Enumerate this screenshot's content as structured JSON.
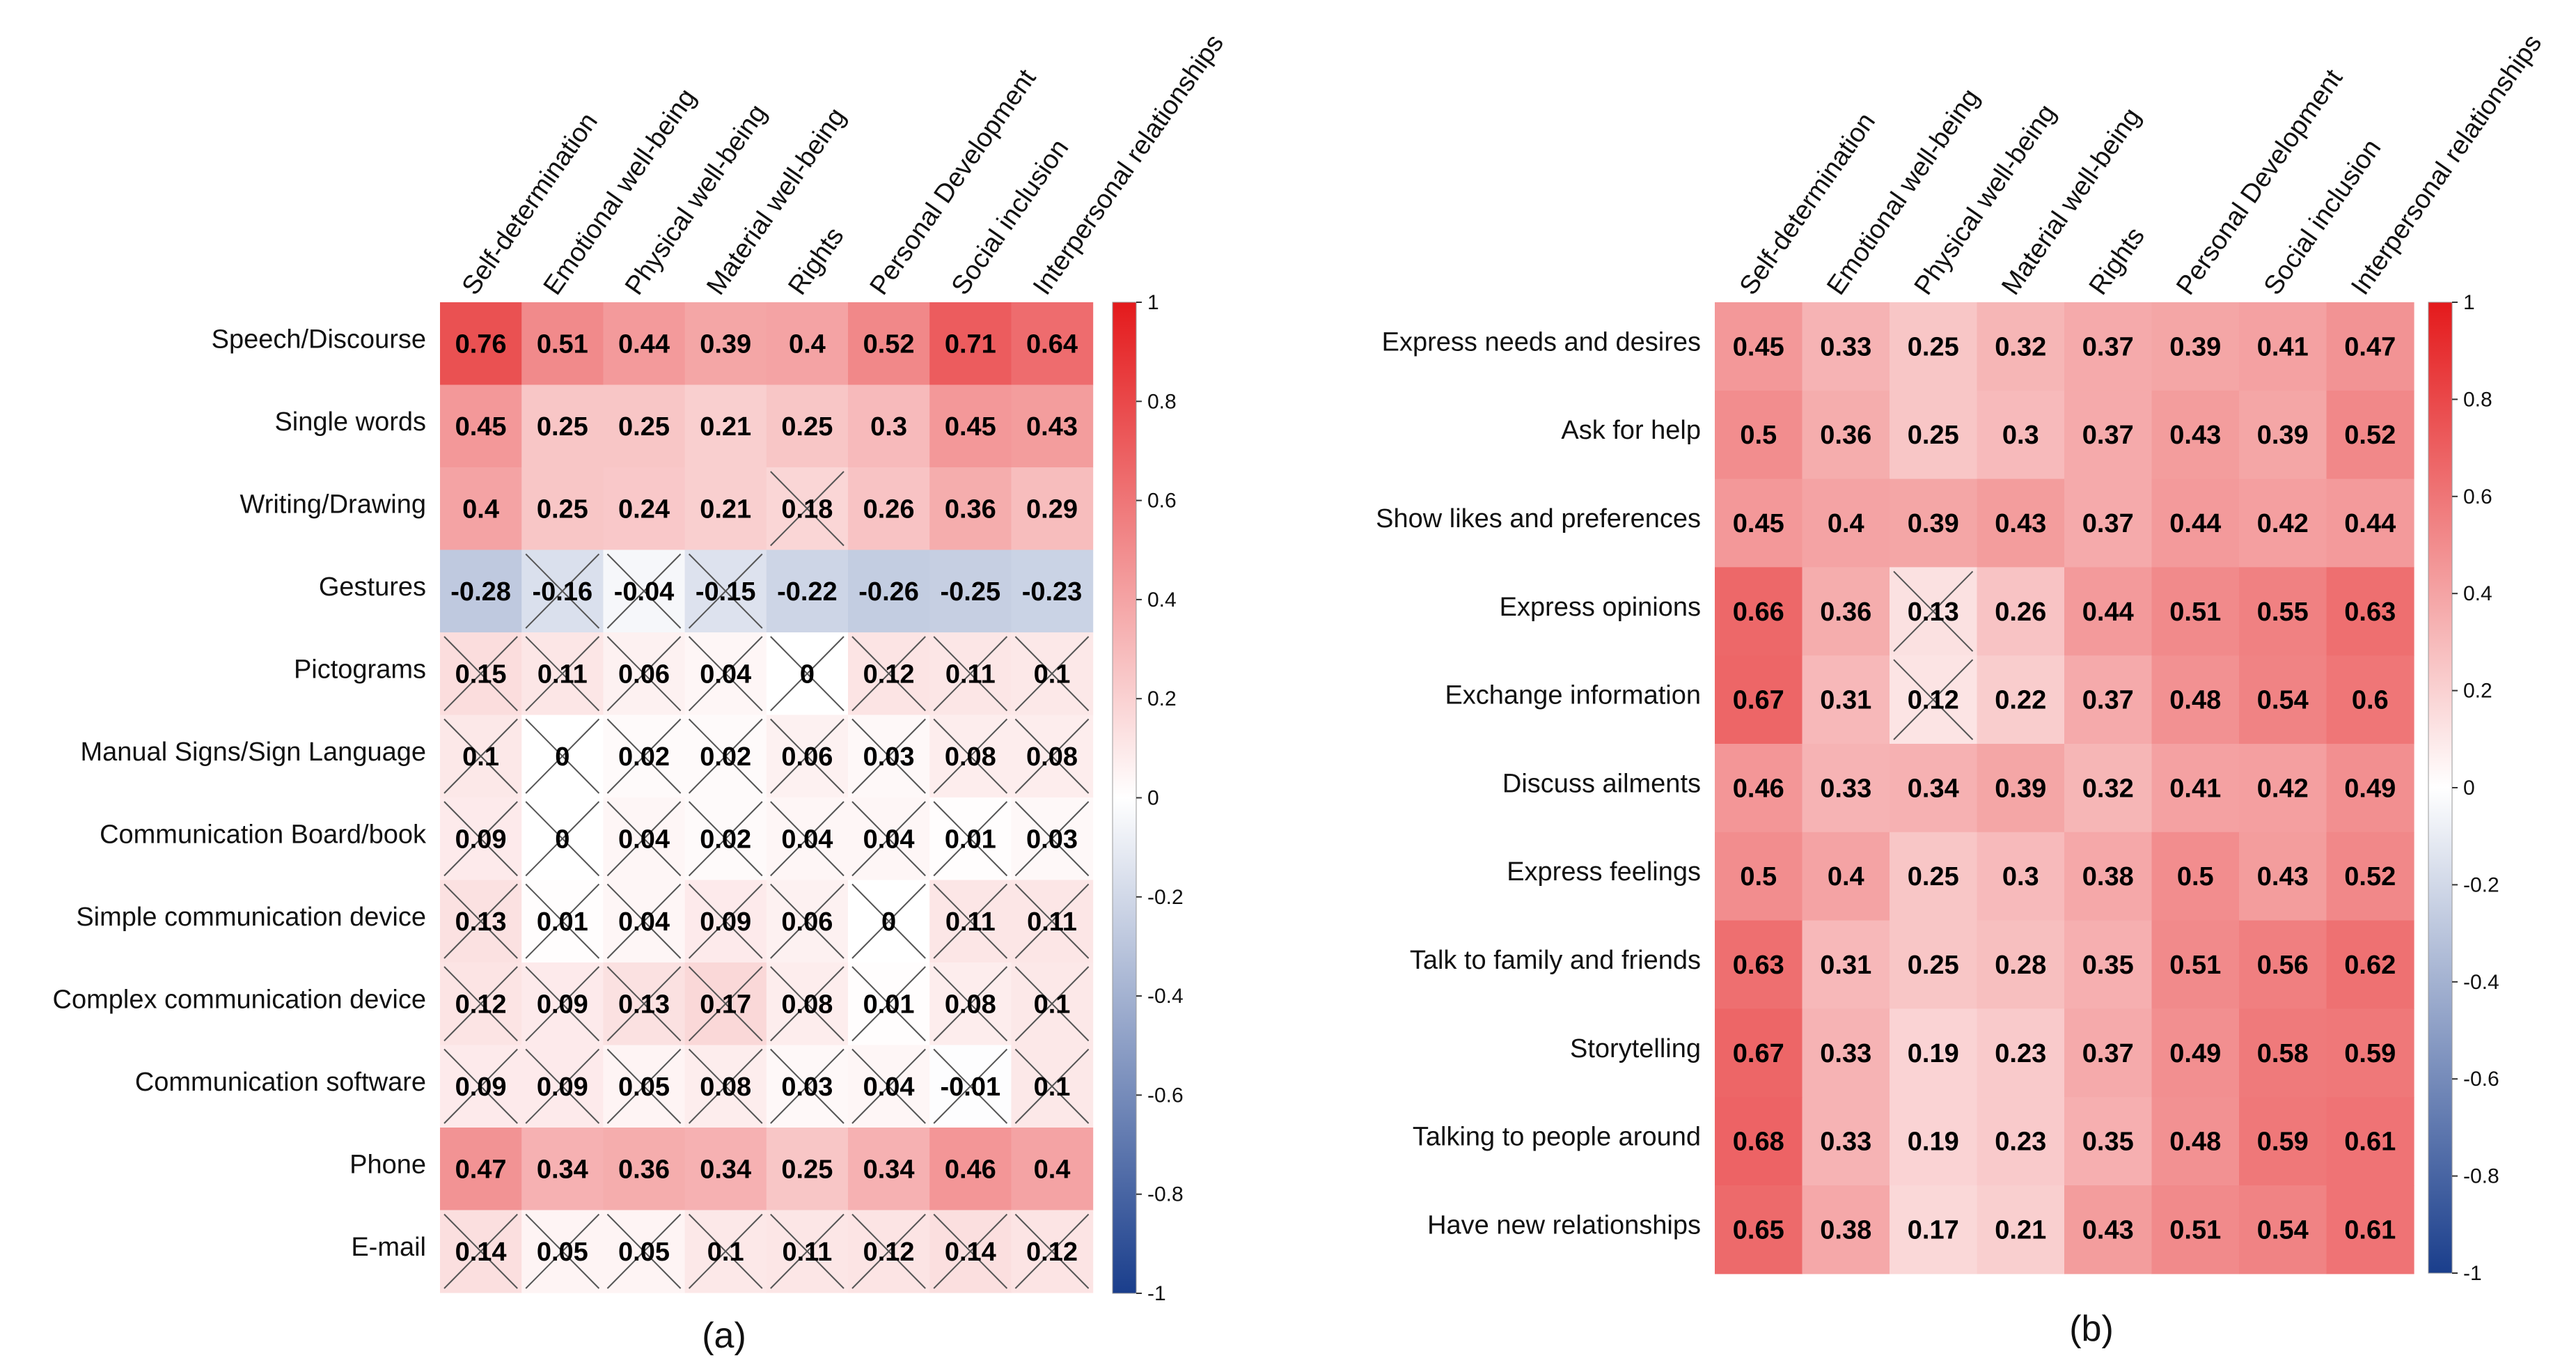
{
  "colors": {
    "positive": "#e41a1c",
    "neutral": "#ffffff",
    "negative": "#1a3e8c"
  },
  "colorbar": {
    "ticks": [
      "1",
      "0.8",
      "0.6",
      "0.4",
      "0.2",
      "0",
      "-0.2",
      "-0.4",
      "-0.6",
      "-0.8",
      "-1"
    ]
  },
  "chart_data": [
    {
      "type": "heatmap",
      "label": "(a)",
      "columns": [
        "Self-determination",
        "Emotional well-being",
        "Physical well-being",
        "Material well-being",
        "Rights",
        "Personal Development",
        "Social inclusion",
        "Interpersonal relationships"
      ],
      "rows": [
        "Speech/Discourse",
        "Single words",
        "Writing/Drawing",
        "Gestures",
        "Pictograms",
        "Manual Signs/Sign Language",
        "Communication Board/book",
        "Simple communication device",
        "Complex communication device",
        "Communication software",
        "Phone",
        "E-mail"
      ],
      "values": [
        [
          "0.76",
          "0.51",
          "0.44",
          "0.39",
          "0.4",
          "0.52",
          "0.71",
          "0.64"
        ],
        [
          "0.45",
          "0.25",
          "0.25",
          "0.21",
          "0.25",
          "0.3",
          "0.45",
          "0.43"
        ],
        [
          "0.4",
          "0.25",
          "0.24",
          "0.21",
          "0.18",
          "0.26",
          "0.36",
          "0.29"
        ],
        [
          "-0.28",
          "-0.16",
          "-0.04",
          "-0.15",
          "-0.22",
          "-0.26",
          "-0.25",
          "-0.23"
        ],
        [
          "0.15",
          "0.11",
          "0.06",
          "0.04",
          "0",
          "0.12",
          "0.11",
          "0.1"
        ],
        [
          "0.1",
          "0",
          "0.02",
          "0.02",
          "0.06",
          "0.03",
          "0.08",
          "0.08"
        ],
        [
          "0.09",
          "0",
          "0.04",
          "0.02",
          "0.04",
          "0.04",
          "0.01",
          "0.03"
        ],
        [
          "0.13",
          "0.01",
          "0.04",
          "0.09",
          "0.06",
          "0",
          "0.11",
          "0.11"
        ],
        [
          "0.12",
          "0.09",
          "0.13",
          "0.17",
          "0.08",
          "0.01",
          "0.08",
          "0.1"
        ],
        [
          "0.09",
          "0.09",
          "0.05",
          "0.08",
          "0.03",
          "0.04",
          "-0.01",
          "0.1"
        ],
        [
          "0.47",
          "0.34",
          "0.36",
          "0.34",
          "0.25",
          "0.34",
          "0.46",
          "0.4"
        ],
        [
          "0.14",
          "0.05",
          "0.05",
          "0.1",
          "0.11",
          "0.12",
          "0.14",
          "0.12"
        ]
      ],
      "crossed": [
        [
          0,
          0,
          0,
          0,
          0,
          0,
          0,
          0
        ],
        [
          0,
          0,
          0,
          0,
          0,
          0,
          0,
          0
        ],
        [
          0,
          0,
          0,
          0,
          1,
          0,
          0,
          0
        ],
        [
          0,
          1,
          1,
          1,
          0,
          0,
          0,
          0
        ],
        [
          1,
          1,
          1,
          1,
          1,
          1,
          1,
          1
        ],
        [
          1,
          1,
          1,
          1,
          1,
          1,
          1,
          1
        ],
        [
          1,
          1,
          1,
          1,
          1,
          1,
          1,
          1
        ],
        [
          1,
          1,
          1,
          1,
          1,
          1,
          1,
          1
        ],
        [
          1,
          1,
          1,
          1,
          1,
          1,
          1,
          1
        ],
        [
          1,
          1,
          1,
          1,
          1,
          1,
          1,
          1
        ],
        [
          0,
          0,
          0,
          0,
          0,
          0,
          0,
          0
        ],
        [
          1,
          1,
          1,
          1,
          1,
          1,
          1,
          1
        ]
      ],
      "scale_range": [
        -1,
        1
      ]
    },
    {
      "type": "heatmap",
      "label": "(b)",
      "columns": [
        "Self-determination",
        "Emotional well-being",
        "Physical well-being",
        "Material well-being",
        "Rights",
        "Personal Development",
        "Social inclusion",
        "Interpersonal relationships"
      ],
      "rows": [
        "Express needs and desires",
        "Ask for help",
        "Show likes and preferences",
        "Express opinions",
        "Exchange information",
        "Discuss ailments",
        "Express feelings",
        "Talk to family and friends",
        "Storytelling",
        "Talking to people around",
        "Have new relationships"
      ],
      "values": [
        [
          "0.45",
          "0.33",
          "0.25",
          "0.32",
          "0.37",
          "0.39",
          "0.41",
          "0.47"
        ],
        [
          "0.5",
          "0.36",
          "0.25",
          "0.3",
          "0.37",
          "0.43",
          "0.39",
          "0.52"
        ],
        [
          "0.45",
          "0.4",
          "0.39",
          "0.43",
          "0.37",
          "0.44",
          "0.42",
          "0.44"
        ],
        [
          "0.66",
          "0.36",
          "0.13",
          "0.26",
          "0.44",
          "0.51",
          "0.55",
          "0.63"
        ],
        [
          "0.67",
          "0.31",
          "0.12",
          "0.22",
          "0.37",
          "0.48",
          "0.54",
          "0.6"
        ],
        [
          "0.46",
          "0.33",
          "0.34",
          "0.39",
          "0.32",
          "0.41",
          "0.42",
          "0.49"
        ],
        [
          "0.5",
          "0.4",
          "0.25",
          "0.3",
          "0.38",
          "0.5",
          "0.43",
          "0.52"
        ],
        [
          "0.63",
          "0.31",
          "0.25",
          "0.28",
          "0.35",
          "0.51",
          "0.56",
          "0.62"
        ],
        [
          "0.67",
          "0.33",
          "0.19",
          "0.23",
          "0.37",
          "0.49",
          "0.58",
          "0.59"
        ],
        [
          "0.68",
          "0.33",
          "0.19",
          "0.23",
          "0.35",
          "0.48",
          "0.59",
          "0.61"
        ],
        [
          "0.65",
          "0.38",
          "0.17",
          "0.21",
          "0.43",
          "0.51",
          "0.54",
          "0.61"
        ]
      ],
      "crossed": [
        [
          0,
          0,
          0,
          0,
          0,
          0,
          0,
          0
        ],
        [
          0,
          0,
          0,
          0,
          0,
          0,
          0,
          0
        ],
        [
          0,
          0,
          0,
          0,
          0,
          0,
          0,
          0
        ],
        [
          0,
          0,
          1,
          0,
          0,
          0,
          0,
          0
        ],
        [
          0,
          0,
          1,
          0,
          0,
          0,
          0,
          0
        ],
        [
          0,
          0,
          0,
          0,
          0,
          0,
          0,
          0
        ],
        [
          0,
          0,
          0,
          0,
          0,
          0,
          0,
          0
        ],
        [
          0,
          0,
          0,
          0,
          0,
          0,
          0,
          0
        ],
        [
          0,
          0,
          0,
          0,
          0,
          0,
          0,
          0
        ],
        [
          0,
          0,
          0,
          0,
          0,
          0,
          0,
          0
        ],
        [
          0,
          0,
          0,
          0,
          0,
          0,
          0,
          0
        ]
      ],
      "scale_range": [
        -1,
        1
      ]
    }
  ]
}
